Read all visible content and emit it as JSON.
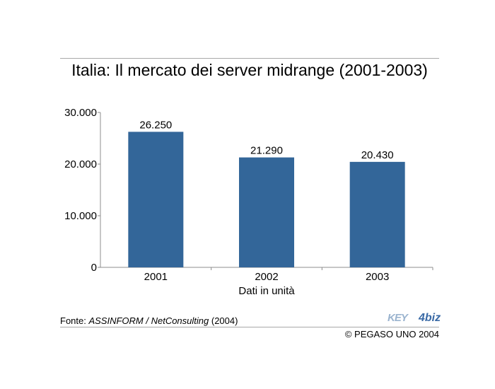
{
  "header": {
    "title": "Italia: Il mercato dei server midrange (2001-2003)"
  },
  "chart_data": {
    "type": "bar",
    "categories": [
      "2001",
      "2002",
      "2003"
    ],
    "values": [
      26250,
      21290,
      20430
    ],
    "value_labels": [
      "26.250",
      "21.290",
      "20.430"
    ],
    "ylim": [
      0,
      30000
    ],
    "yticks": [
      0,
      10000,
      20000,
      30000
    ],
    "ytick_labels": [
      "0",
      "10.000",
      "20.000",
      "30.000"
    ],
    "xlabel": "Dati in unità",
    "ylabel": "",
    "bar_color": "#336699",
    "grid": false
  },
  "footer": {
    "source_prefix": "Fonte: ",
    "source_name": "ASSINFORM / NetConsulting",
    "source_year": " (2004)",
    "copyright": "© PEGASO UNO 2004",
    "logo_left": "KEY",
    "logo_right": "4biz"
  }
}
